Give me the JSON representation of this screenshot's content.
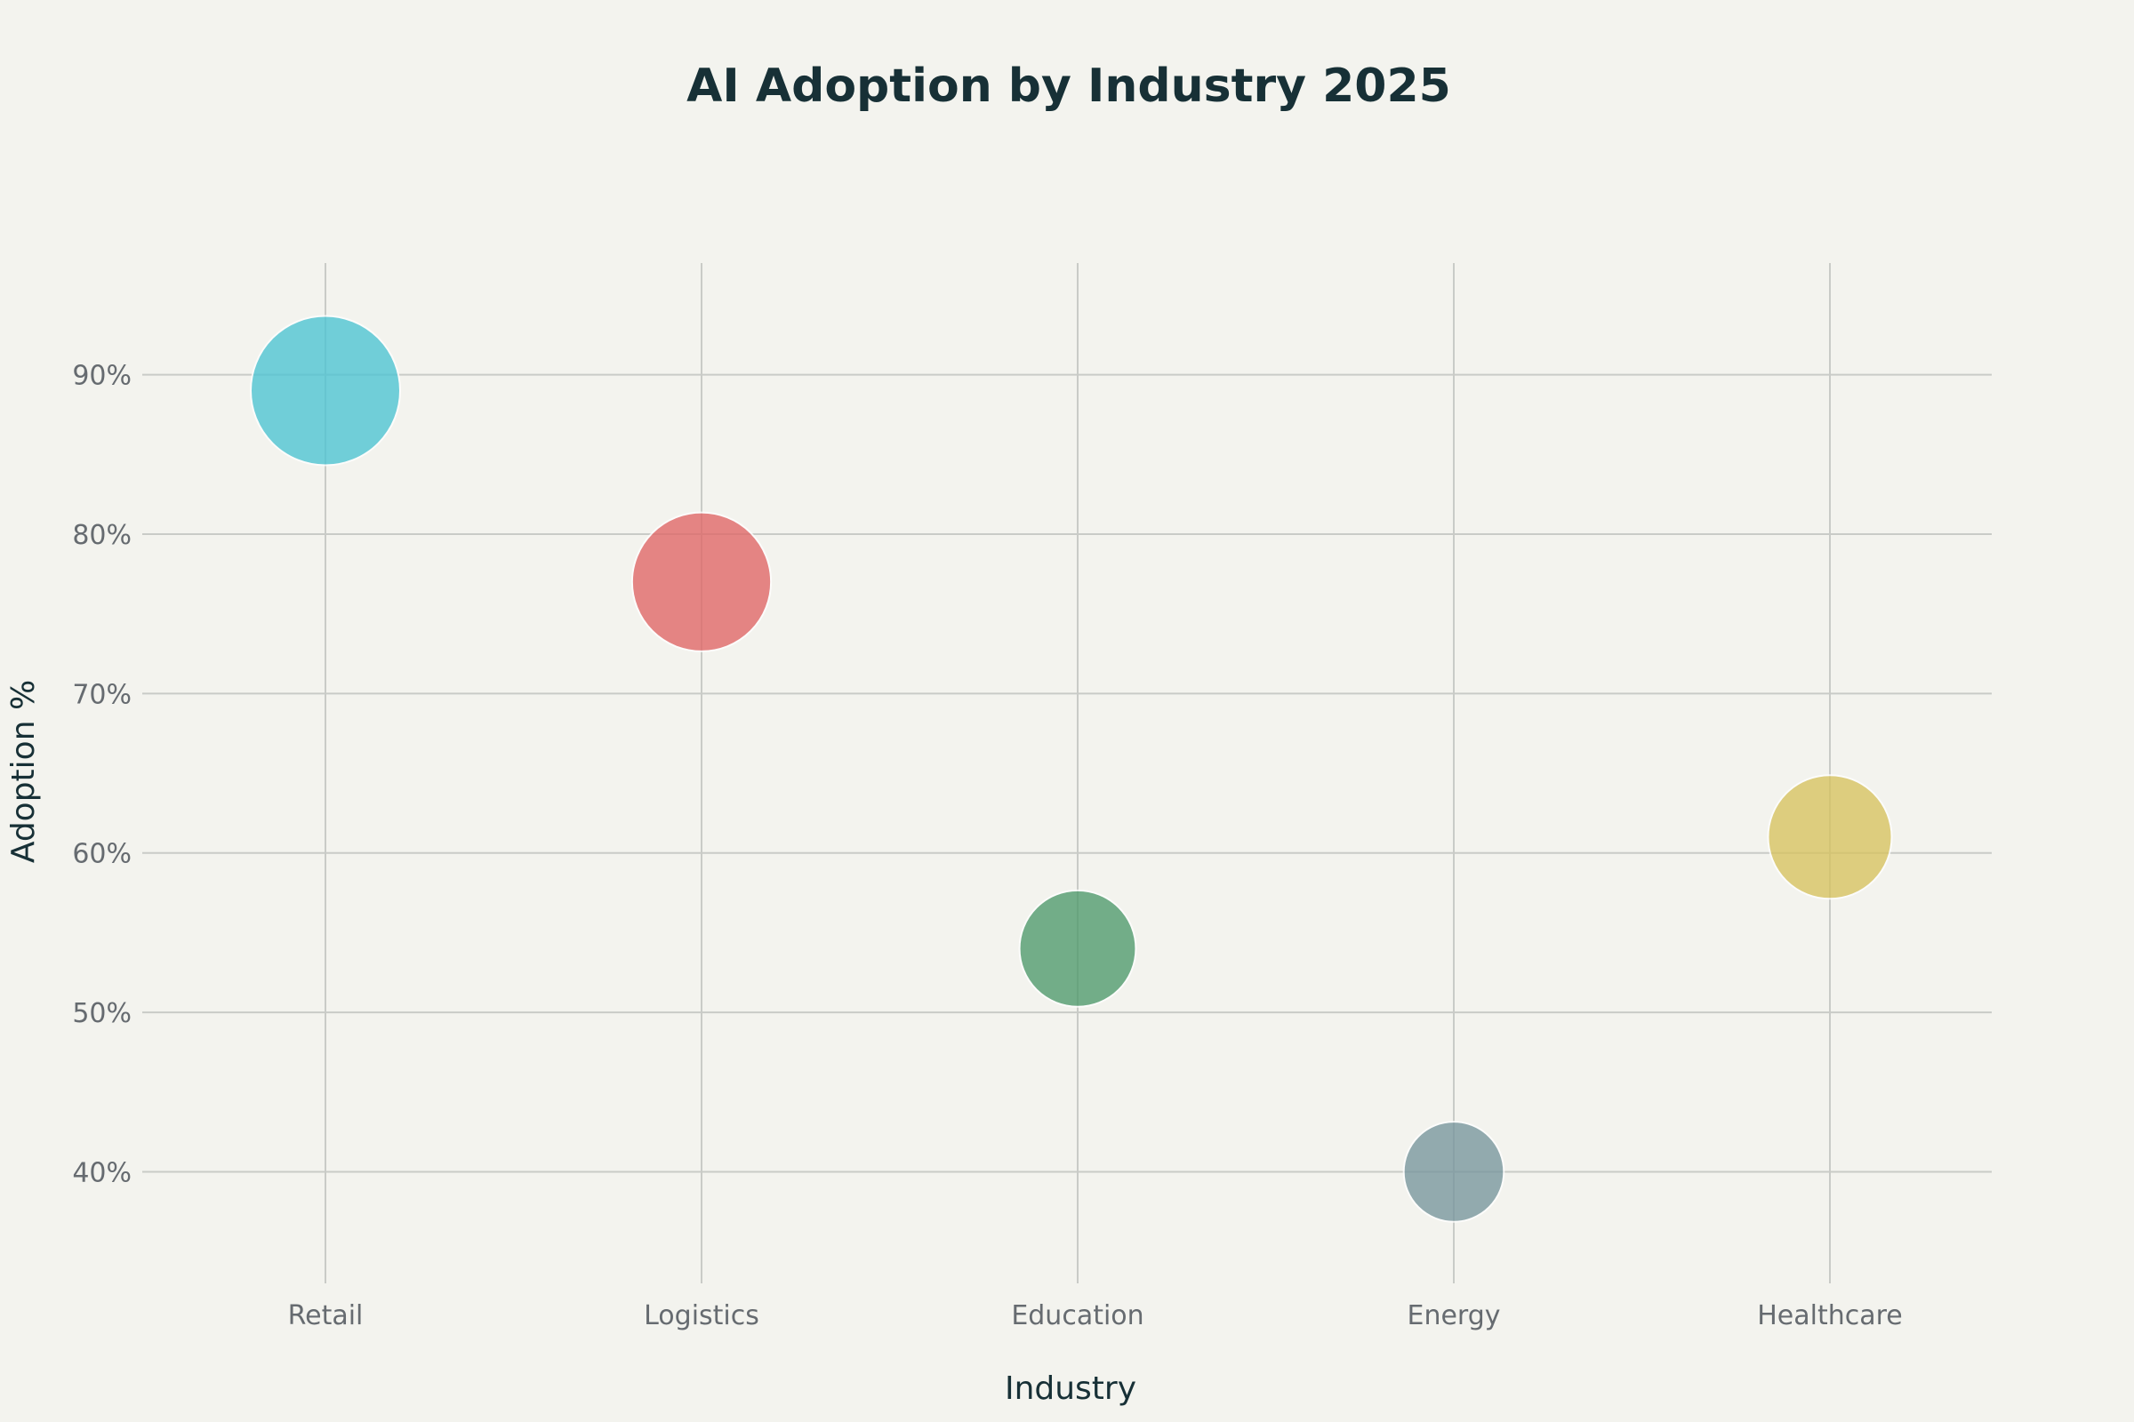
{
  "chart_data": {
    "type": "scatter",
    "title": "AI Adoption by Industry 2025",
    "xlabel": "Industry",
    "ylabel": "Adoption %",
    "categories": [
      "Retail",
      "Logistics",
      "Education",
      "Energy",
      "Healthcare"
    ],
    "values": [
      89,
      77,
      54,
      40,
      61
    ],
    "relative_size": [
      89,
      77,
      54,
      40,
      61
    ],
    "colors": [
      "#4cc4d3",
      "#e06666",
      "#4f9a6c",
      "#78969d",
      "#d7c35f"
    ],
    "ylim": [
      33,
      97
    ],
    "yticks": [
      40,
      50,
      60,
      70,
      80,
      90
    ],
    "ytick_labels": [
      "40%",
      "50%",
      "60%",
      "70%",
      "80%",
      "90%"
    ],
    "grid": true,
    "legend": "none"
  }
}
